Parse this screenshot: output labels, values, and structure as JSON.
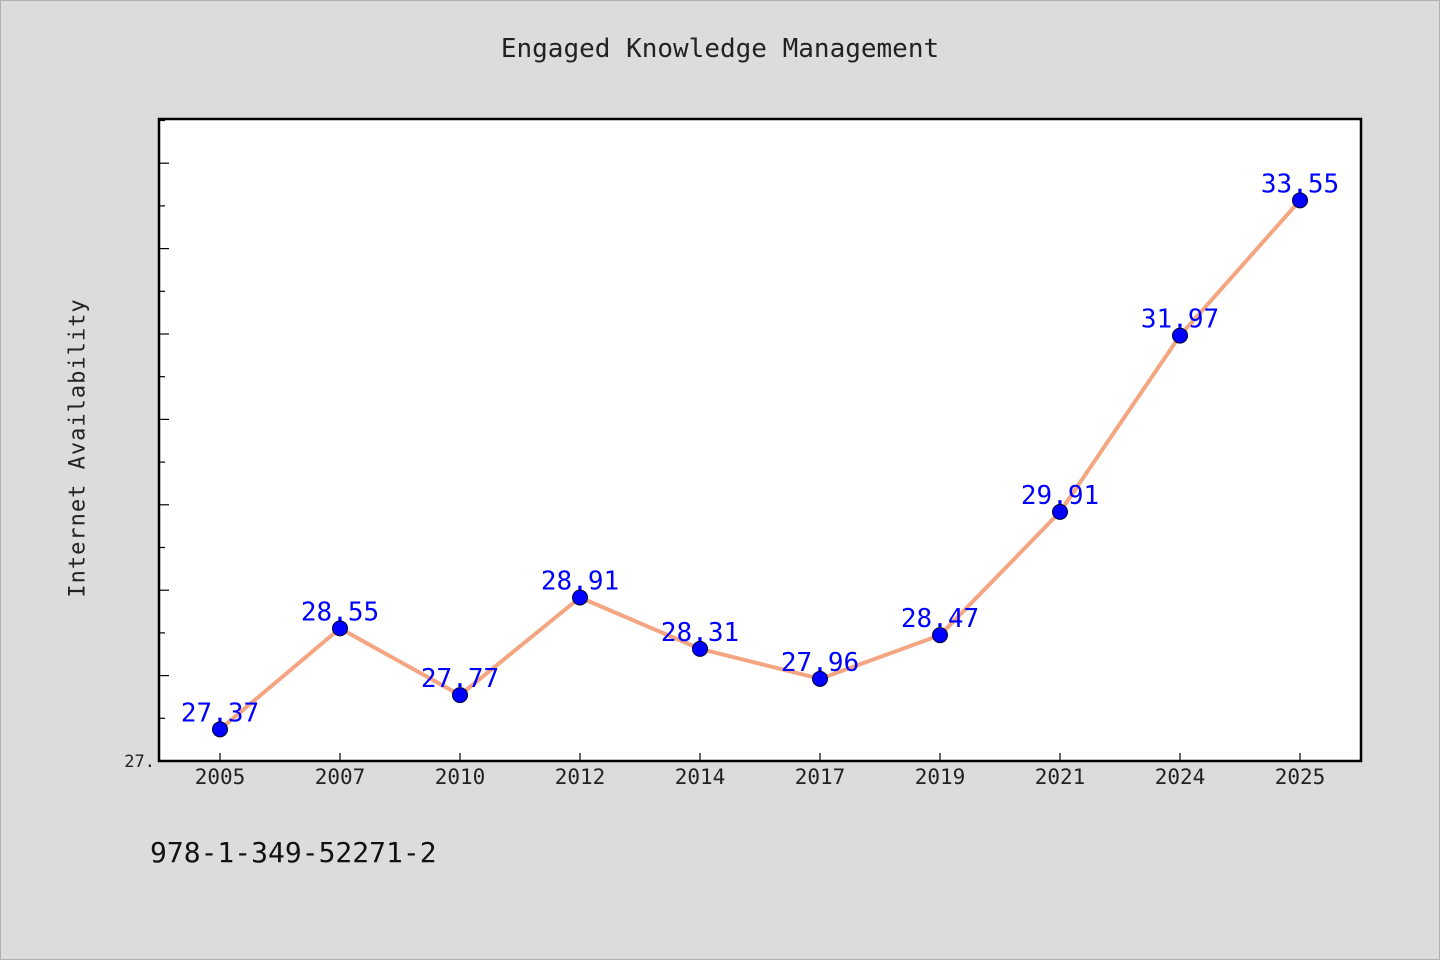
{
  "chart_data": {
    "type": "line",
    "title": "Engaged Knowledge Management",
    "xlabel": "",
    "ylabel": "Internet Availability",
    "categories": [
      "2005",
      "2007",
      "2010",
      "2012",
      "2014",
      "2017",
      "2019",
      "2021",
      "2024",
      "2025"
    ],
    "series": [
      {
        "values": [
          27.37,
          28.55,
          27.77,
          28.91,
          28.31,
          27.96,
          28.47,
          29.91,
          31.97,
          33.55
        ],
        "data_labels": [
          "27.37",
          "28.55",
          "27.77",
          "28.91",
          "28.31",
          "27.96",
          "28.47",
          "29.91",
          "31.97",
          "33.55"
        ]
      }
    ],
    "ylim": [
      27.0,
      34.5
    ],
    "y_tick_label": "27.",
    "grid": false,
    "legend": "none",
    "colors": {
      "line": "#f4a582",
      "marker": "#0000ff",
      "data_label": "#0000ff",
      "axes": "#000000",
      "background": "#dcdcdc",
      "plot_background": "#ffffff"
    }
  },
  "footer": {
    "code": "978-1-349-52271-2"
  }
}
